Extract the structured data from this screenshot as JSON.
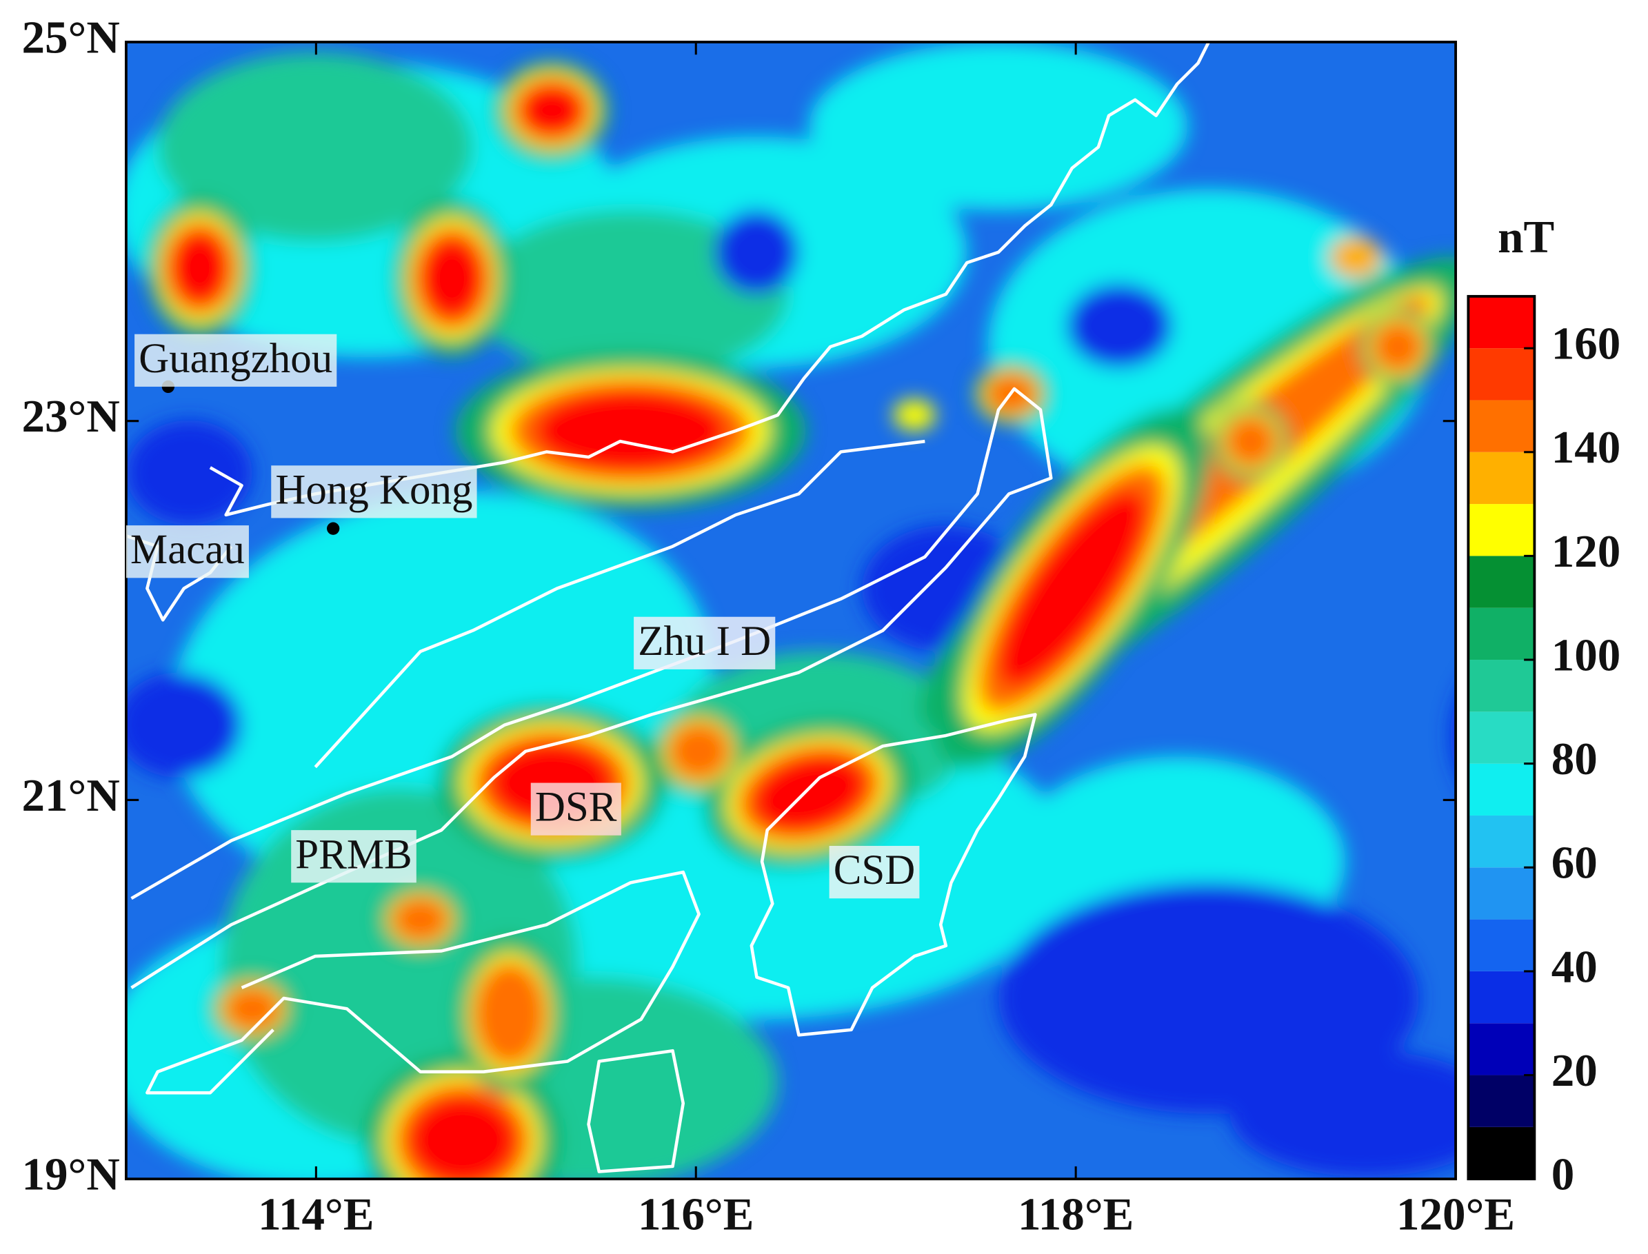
{
  "map": {
    "xlim": [
      113,
      120
    ],
    "ylim": [
      19,
      25
    ],
    "xticks": [
      {
        "value": 114,
        "label": "114°E"
      },
      {
        "value": 116,
        "label": "116°E"
      },
      {
        "value": 118,
        "label": "118°E"
      },
      {
        "value": 120,
        "label": "120°E"
      }
    ],
    "yticks": [
      {
        "value": 19,
        "label": "19°N"
      },
      {
        "value": 21,
        "label": "21°N"
      },
      {
        "value": 23,
        "label": "23°N"
      },
      {
        "value": 25,
        "label": "25°N"
      }
    ],
    "cities": [
      "Guangzhou",
      "Hong Kong",
      "Macau"
    ],
    "regions": [
      "Zhu I D",
      "DSR",
      "PRMB",
      "CSD"
    ]
  },
  "colorbar": {
    "title": "nT",
    "range": [
      0,
      170
    ],
    "ticks": [
      0,
      20,
      40,
      60,
      80,
      100,
      120,
      140,
      160
    ],
    "colors": [
      "#000000",
      "#000066",
      "#0000b8",
      "#0a2ee6",
      "#1464f0",
      "#2094f2",
      "#22c2f2",
      "#10eef0",
      "#28dcc4",
      "#1fc996",
      "#10b066",
      "#059033",
      "#ffff00",
      "#ffb000",
      "#ff7000",
      "#ff3a00",
      "#ff0000"
    ]
  }
}
